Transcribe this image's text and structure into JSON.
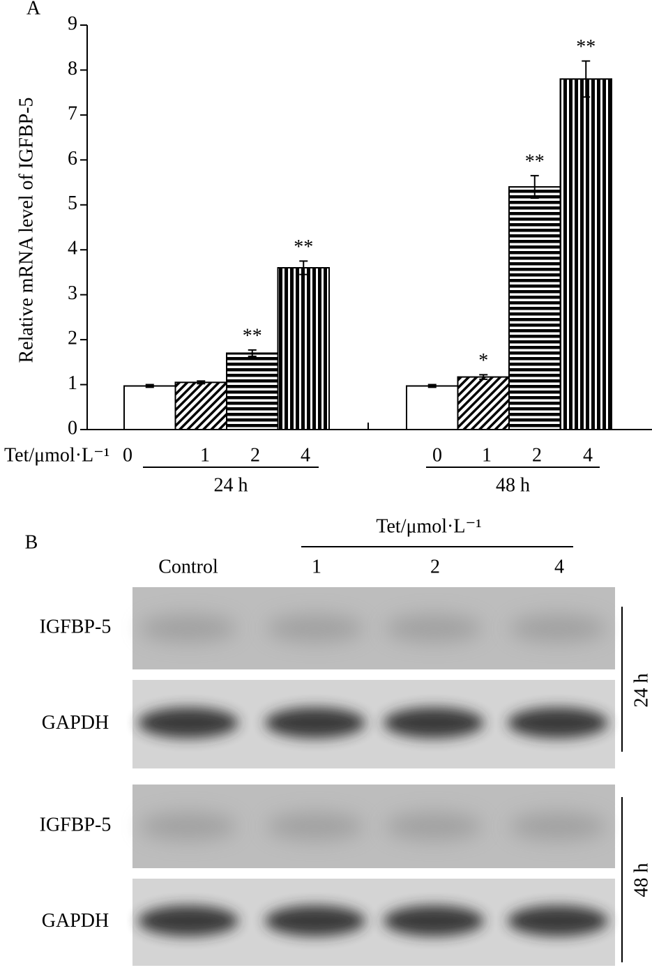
{
  "panel_a": {
    "label": "A"
  },
  "chart_data": {
    "type": "bar",
    "y_label": "Relative mRNA level of  IGFBP-5",
    "x_label": "Tet/μmol·L⁻¹",
    "ylim": [
      0,
      9
    ],
    "yticks": [
      0,
      1,
      2,
      3,
      4,
      5,
      6,
      7,
      8,
      9
    ],
    "bar_patterns": [
      "none",
      "diagonal",
      "horizontal",
      "vertical"
    ],
    "color": "#000000",
    "groups": [
      {
        "name": "24 h",
        "categories": [
          "0",
          "1",
          "2",
          "4"
        ],
        "values": [
          0.97,
          1.05,
          1.7,
          3.6
        ],
        "errors": [
          0.03,
          0.03,
          0.07,
          0.15
        ],
        "annotations": [
          null,
          null,
          "**",
          "**"
        ]
      },
      {
        "name": "48 h",
        "categories": [
          "0",
          "1",
          "2",
          "4"
        ],
        "values": [
          0.97,
          1.17,
          5.4,
          7.8
        ],
        "errors": [
          0.03,
          0.05,
          0.25,
          0.4
        ],
        "annotations": [
          null,
          "*",
          "**",
          "**"
        ]
      }
    ]
  },
  "blot": {
    "label": "B",
    "treatment": "Tet/μmol·L⁻¹",
    "lanes": [
      "Control",
      "1",
      "2",
      "4"
    ],
    "rows": [
      "IGFBP-5",
      "GAPDH",
      "IGFBP-5",
      "GAPDH"
    ],
    "times": [
      "24 h",
      "48 h"
    ]
  }
}
